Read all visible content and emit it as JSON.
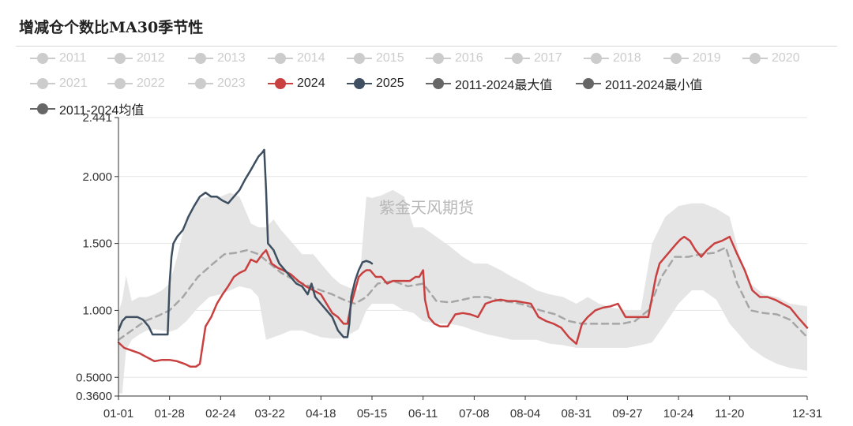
{
  "title": "增减仓个数比MA30季节性",
  "watermark": "紫金天风期货",
  "colors": {
    "inactive": "#cccccc",
    "band": "#e5e5e5",
    "y2024": "#c94040",
    "y2025": "#3d4f60",
    "average": "#a6a6a6",
    "stat": "#666666",
    "axis": "#333333",
    "grid": "#e6e6e6"
  },
  "legend": [
    {
      "label": "2011",
      "active": false
    },
    {
      "label": "2012",
      "active": false
    },
    {
      "label": "2013",
      "active": false
    },
    {
      "label": "2014",
      "active": false
    },
    {
      "label": "2015",
      "active": false
    },
    {
      "label": "2016",
      "active": false
    },
    {
      "label": "2017",
      "active": false
    },
    {
      "label": "2018",
      "active": false
    },
    {
      "label": "2019",
      "active": false
    },
    {
      "label": "2020",
      "active": false
    },
    {
      "label": "2021",
      "active": false
    },
    {
      "label": "2022",
      "active": false
    },
    {
      "label": "2023",
      "active": false
    },
    {
      "label": "2024",
      "active": true,
      "color": "#c94040"
    },
    {
      "label": "2025",
      "active": true,
      "color": "#3d4f60"
    },
    {
      "label": "2011-2024最大值",
      "active": true,
      "color": "#666666"
    },
    {
      "label": "2011-2024最小值",
      "active": true,
      "color": "#666666"
    },
    {
      "label": "2011-2024均值",
      "active": true,
      "color": "#666666"
    }
  ],
  "chart_data": {
    "type": "line",
    "title": "增减仓个数比MA30季节性",
    "x_axis": {
      "type": "date (MM-DD)",
      "ticks": [
        "01-01",
        "01-28",
        "02-24",
        "03-22",
        "04-18",
        "05-15",
        "06-11",
        "07-08",
        "08-04",
        "08-31",
        "09-27",
        "10-24",
        "11-20",
        "12-31"
      ]
    },
    "y_axis": {
      "range": [
        0.36,
        2.441
      ],
      "ticks": [
        {
          "value": 0.36,
          "label": "0.3600"
        },
        {
          "value": 0.5,
          "label": "0.5000"
        },
        {
          "value": 1.0,
          "label": "1.000"
        },
        {
          "value": 1.5,
          "label": "1.500"
        },
        {
          "value": 2.0,
          "label": "2.000"
        },
        {
          "value": 2.441,
          "label": "2.441"
        }
      ],
      "grid": true
    },
    "band": {
      "name": "2011-2024 min-max range",
      "x": [
        "01-01",
        "01-03",
        "01-05",
        "01-08",
        "01-12",
        "01-16",
        "01-20",
        "01-24",
        "01-28",
        "02-01",
        "02-06",
        "02-12",
        "02-18",
        "02-24",
        "03-01",
        "03-06",
        "03-12",
        "03-16",
        "03-20",
        "03-24",
        "03-28",
        "04-02",
        "04-08",
        "04-14",
        "04-18",
        "04-24",
        "04-28",
        "05-03",
        "05-08",
        "05-12",
        "05-15",
        "05-20",
        "05-26",
        "06-01",
        "06-06",
        "06-11",
        "06-18",
        "06-25",
        "07-02",
        "07-08",
        "07-15",
        "07-22",
        "07-28",
        "08-04",
        "08-10",
        "08-17",
        "08-24",
        "08-31",
        "09-06",
        "09-12",
        "09-19",
        "09-27",
        "10-04",
        "10-10",
        "10-17",
        "10-24",
        "10-31",
        "11-06",
        "11-13",
        "11-20",
        "11-25",
        "12-01",
        "12-08",
        "12-15",
        "12-22",
        "12-31"
      ],
      "max": [
        0.98,
        1.08,
        1.26,
        1.07,
        1.1,
        1.1,
        1.12,
        1.15,
        1.2,
        1.4,
        1.7,
        1.83,
        1.85,
        1.85,
        1.88,
        1.85,
        1.65,
        1.62,
        1.62,
        1.68,
        1.6,
        1.52,
        1.42,
        1.42,
        1.35,
        1.25,
        1.2,
        1.17,
        1.15,
        1.85,
        1.84,
        1.86,
        1.9,
        1.85,
        1.62,
        1.62,
        1.55,
        1.48,
        1.4,
        1.35,
        1.35,
        1.3,
        1.25,
        1.2,
        1.15,
        1.12,
        1.1,
        1.05,
        1.1,
        1.05,
        1.02,
        1.0,
        1.0,
        1.5,
        1.7,
        1.78,
        1.8,
        1.8,
        1.76,
        1.7,
        1.42,
        1.2,
        1.12,
        1.1,
        1.05,
        1.03
      ],
      "min": [
        0.38,
        0.38,
        0.7,
        0.78,
        0.82,
        0.85,
        0.86,
        0.85,
        0.84,
        0.86,
        0.92,
        1.02,
        1.1,
        1.12,
        1.15,
        1.18,
        1.16,
        1.1,
        0.78,
        0.8,
        0.82,
        0.85,
        0.85,
        0.82,
        0.8,
        0.79,
        0.79,
        0.82,
        0.86,
        1.0,
        1.05,
        1.05,
        1.05,
        1.0,
        0.98,
        0.92,
        0.9,
        0.9,
        0.88,
        0.85,
        0.82,
        0.8,
        0.78,
        0.78,
        0.78,
        0.75,
        0.74,
        0.72,
        0.72,
        0.72,
        0.72,
        0.72,
        0.74,
        0.76,
        0.9,
        1.05,
        1.15,
        1.15,
        1.08,
        0.9,
        0.82,
        0.72,
        0.65,
        0.6,
        0.57,
        0.55
      ]
    },
    "series": [
      {
        "name": "2011-2024均值",
        "style": "dashed",
        "x": [
          "01-01",
          "01-08",
          "01-15",
          "01-22",
          "01-28",
          "02-04",
          "02-12",
          "02-20",
          "02-26",
          "03-04",
          "03-10",
          "03-16",
          "03-22",
          "03-28",
          "04-05",
          "04-12",
          "04-18",
          "04-24",
          "04-30",
          "05-06",
          "05-12",
          "05-18",
          "05-26",
          "06-03",
          "06-11",
          "06-18",
          "06-25",
          "07-02",
          "07-08",
          "07-15",
          "07-22",
          "07-29",
          "08-04",
          "08-12",
          "08-20",
          "08-27",
          "09-03",
          "09-10",
          "09-17",
          "09-24",
          "10-01",
          "10-08",
          "10-15",
          "10-22",
          "10-29",
          "11-05",
          "11-12",
          "11-18",
          "11-24",
          "12-01",
          "12-08",
          "12-15",
          "12-22",
          "12-31"
        ],
        "values": [
          0.78,
          0.85,
          0.92,
          0.96,
          1.0,
          1.1,
          1.25,
          1.35,
          1.42,
          1.43,
          1.45,
          1.42,
          1.35,
          1.28,
          1.22,
          1.18,
          1.15,
          1.12,
          1.08,
          1.05,
          1.1,
          1.2,
          1.22,
          1.18,
          1.2,
          1.07,
          1.06,
          1.08,
          1.1,
          1.1,
          1.07,
          1.06,
          1.04,
          1.0,
          0.97,
          0.92,
          0.9,
          0.9,
          0.9,
          0.9,
          0.92,
          1.0,
          1.25,
          1.4,
          1.4,
          1.42,
          1.43,
          1.47,
          1.2,
          1.0,
          0.98,
          0.97,
          0.93,
          0.8
        ]
      },
      {
        "name": "2024",
        "x": [
          "01-01",
          "01-04",
          "01-08",
          "01-12",
          "01-16",
          "01-20",
          "01-24",
          "01-28",
          "02-01",
          "02-05",
          "02-08",
          "02-11",
          "02-13",
          "02-16",
          "02-19",
          "02-22",
          "02-25",
          "02-28",
          "03-03",
          "03-06",
          "03-09",
          "03-12",
          "03-15",
          "03-18",
          "03-20",
          "03-23",
          "03-26",
          "03-29",
          "04-02",
          "04-06",
          "04-10",
          "04-14",
          "04-18",
          "04-21",
          "04-24",
          "04-27",
          "04-30",
          "05-02",
          "05-04",
          "05-06",
          "05-08",
          "05-10",
          "05-12",
          "05-14",
          "05-17",
          "05-20",
          "05-23",
          "05-26",
          "05-29",
          "06-01",
          "06-04",
          "06-07",
          "06-09",
          "06-11",
          "06-12",
          "06-14",
          "06-17",
          "06-20",
          "06-24",
          "06-28",
          "07-02",
          "07-06",
          "07-10",
          "07-14",
          "07-18",
          "07-22",
          "07-26",
          "07-30",
          "08-03",
          "08-07",
          "08-11",
          "08-15",
          "08-19",
          "08-23",
          "08-27",
          "08-31",
          "09-03",
          "09-06",
          "09-10",
          "09-14",
          "09-18",
          "09-22",
          "09-26",
          "09-30",
          "10-03",
          "10-06",
          "10-08",
          "10-10",
          "10-12",
          "10-14",
          "10-17",
          "10-20",
          "10-23",
          "10-25",
          "10-27",
          "10-30",
          "11-02",
          "11-05",
          "11-08",
          "11-12",
          "11-16",
          "11-20",
          "11-24",
          "11-28",
          "12-02",
          "12-06",
          "12-10",
          "12-14",
          "12-18",
          "12-22",
          "12-26",
          "12-31"
        ],
        "values": [
          0.76,
          0.72,
          0.7,
          0.68,
          0.65,
          0.62,
          0.63,
          0.63,
          0.62,
          0.6,
          0.58,
          0.58,
          0.6,
          0.88,
          0.95,
          1.05,
          1.12,
          1.18,
          1.25,
          1.28,
          1.3,
          1.38,
          1.36,
          1.42,
          1.45,
          1.35,
          1.32,
          1.3,
          1.27,
          1.22,
          1.18,
          1.15,
          1.12,
          1.05,
          0.98,
          0.95,
          0.9,
          0.9,
          1.05,
          1.15,
          1.25,
          1.28,
          1.3,
          1.3,
          1.25,
          1.25,
          1.2,
          1.22,
          1.22,
          1.22,
          1.22,
          1.25,
          1.25,
          1.3,
          1.08,
          0.95,
          0.9,
          0.88,
          0.88,
          0.97,
          0.98,
          0.97,
          0.95,
          1.05,
          1.07,
          1.08,
          1.07,
          1.07,
          1.06,
          1.05,
          0.95,
          0.92,
          0.9,
          0.87,
          0.8,
          0.75,
          0.9,
          0.95,
          1.0,
          1.02,
          1.03,
          1.05,
          0.95,
          0.95,
          0.95,
          0.95,
          0.95,
          1.1,
          1.25,
          1.35,
          1.4,
          1.45,
          1.5,
          1.53,
          1.55,
          1.52,
          1.45,
          1.4,
          1.45,
          1.5,
          1.52,
          1.55,
          1.42,
          1.3,
          1.15,
          1.1,
          1.1,
          1.08,
          1.05,
          1.02,
          0.95,
          0.87
        ]
      },
      {
        "name": "2025",
        "x": [
          "01-01",
          "01-03",
          "01-05",
          "01-08",
          "01-11",
          "01-14",
          "01-17",
          "01-19",
          "01-21",
          "01-24",
          "01-27",
          "01-28",
          "01-29",
          "01-30",
          "02-01",
          "02-04",
          "02-07",
          "02-10",
          "02-13",
          "02-16",
          "02-19",
          "02-22",
          "02-25",
          "02-28",
          "03-03",
          "03-06",
          "03-09",
          "03-12",
          "03-14",
          "03-16",
          "03-18",
          "03-19",
          "03-20",
          "03-21",
          "03-24",
          "03-27",
          "03-30",
          "04-02",
          "04-05",
          "04-08",
          "04-11",
          "04-13",
          "04-15",
          "04-18",
          "04-21",
          "04-24",
          "04-27",
          "04-30",
          "05-02",
          "05-03",
          "05-04",
          "05-06",
          "05-08",
          "05-10",
          "05-12",
          "05-14",
          "05-15"
        ],
        "values": [
          0.85,
          0.92,
          0.95,
          0.95,
          0.95,
          0.93,
          0.88,
          0.82,
          0.82,
          0.82,
          0.82,
          1.2,
          1.4,
          1.5,
          1.55,
          1.6,
          1.7,
          1.78,
          1.85,
          1.88,
          1.85,
          1.85,
          1.82,
          1.8,
          1.85,
          1.9,
          1.98,
          2.05,
          2.1,
          2.15,
          2.18,
          2.2,
          1.9,
          1.5,
          1.45,
          1.35,
          1.3,
          1.25,
          1.2,
          1.18,
          1.12,
          1.2,
          1.1,
          1.05,
          1.0,
          0.95,
          0.85,
          0.8,
          0.8,
          0.9,
          1.1,
          1.22,
          1.3,
          1.36,
          1.37,
          1.36,
          1.35
        ]
      }
    ]
  }
}
